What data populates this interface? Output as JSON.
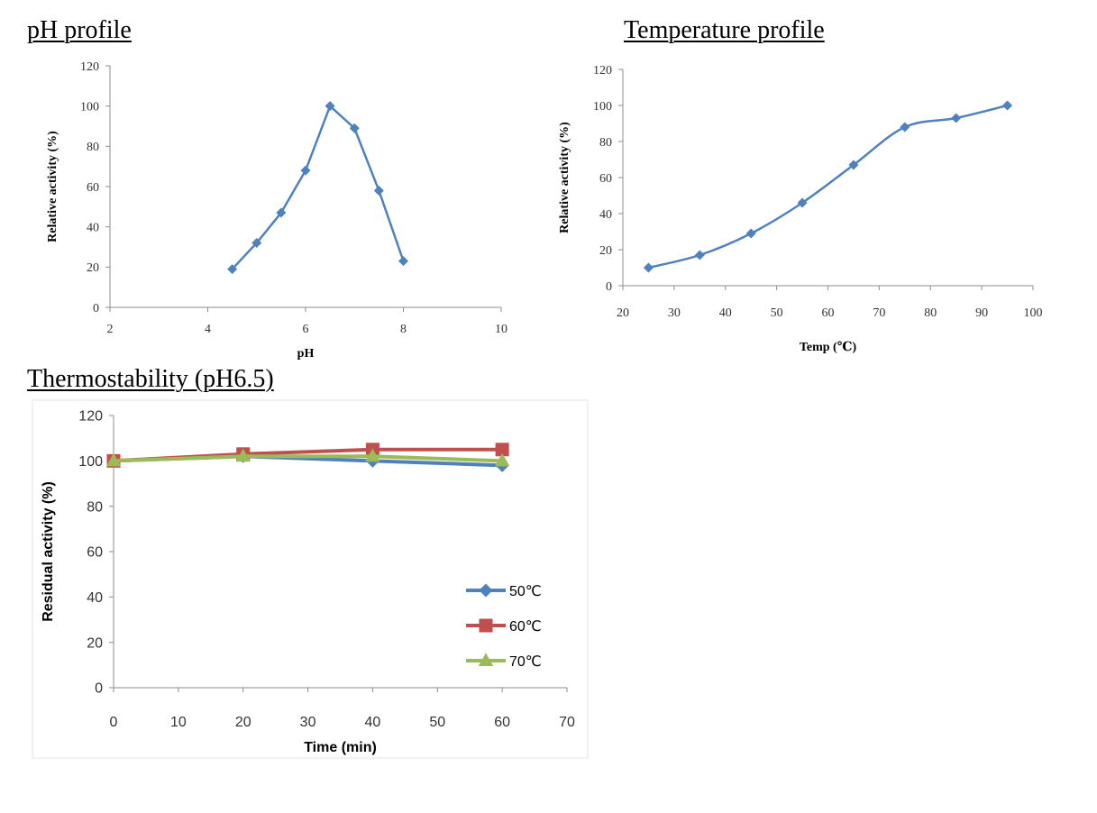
{
  "titles": {
    "ph": "pH profile",
    "temp": "Temperature profile",
    "thermo": "Thermostability (pH6.5)"
  },
  "chart_data": [
    {
      "type": "line",
      "title": "pH profile",
      "xlabel": "pH",
      "ylabel": "Relative activity (%)",
      "xlim": [
        2,
        10
      ],
      "ylim": [
        0,
        120
      ],
      "xticks": [
        2,
        4,
        6,
        8,
        10
      ],
      "yticks": [
        0,
        20,
        40,
        60,
        80,
        100,
        120
      ],
      "grid": false,
      "color": "#4f81bd",
      "series": [
        {
          "x": [
            4.5,
            5.0,
            5.5,
            6.0,
            6.5,
            7.0,
            7.5,
            8.0
          ],
          "y": [
            19,
            32,
            47,
            68,
            100,
            89,
            58,
            23
          ]
        }
      ]
    },
    {
      "type": "line",
      "title": "Temperature profile",
      "xlabel": "Temp (℃)",
      "ylabel": "Relative activity (%)",
      "xlim": [
        20,
        100
      ],
      "ylim": [
        0,
        120
      ],
      "xticks": [
        20,
        30,
        40,
        50,
        60,
        70,
        80,
        90,
        100
      ],
      "yticks": [
        0,
        20,
        40,
        60,
        80,
        100,
        120
      ],
      "grid": false,
      "color": "#4f81bd",
      "series": [
        {
          "x": [
            25,
            35,
            45,
            55,
            65,
            75,
            85,
            95
          ],
          "y": [
            10,
            17,
            29,
            46,
            67,
            88,
            93,
            100
          ]
        }
      ]
    },
    {
      "type": "line",
      "title": "Thermostability (pH6.5)",
      "xlabel": "Time (min)",
      "ylabel": "Residual activity  (%)",
      "xlim": [
        0,
        70
      ],
      "ylim": [
        0,
        120
      ],
      "xticks": [
        0,
        10,
        20,
        30,
        40,
        50,
        60,
        70
      ],
      "yticks": [
        0,
        20,
        40,
        60,
        80,
        100,
        120
      ],
      "grid": false,
      "legend": "right",
      "series": [
        {
          "name": "50℃",
          "color": "#4f81bd",
          "marker": "diamond",
          "x": [
            0,
            20,
            40,
            60
          ],
          "y": [
            100,
            102,
            100,
            98
          ]
        },
        {
          "name": "60℃",
          "color": "#c0504d",
          "marker": "square",
          "x": [
            0,
            20,
            40,
            60
          ],
          "y": [
            100,
            103,
            105,
            105
          ]
        },
        {
          "name": "70℃",
          "color": "#9bbb59",
          "marker": "triangle",
          "x": [
            0,
            20,
            40,
            60
          ],
          "y": [
            100,
            102,
            102,
            100
          ]
        }
      ]
    }
  ]
}
